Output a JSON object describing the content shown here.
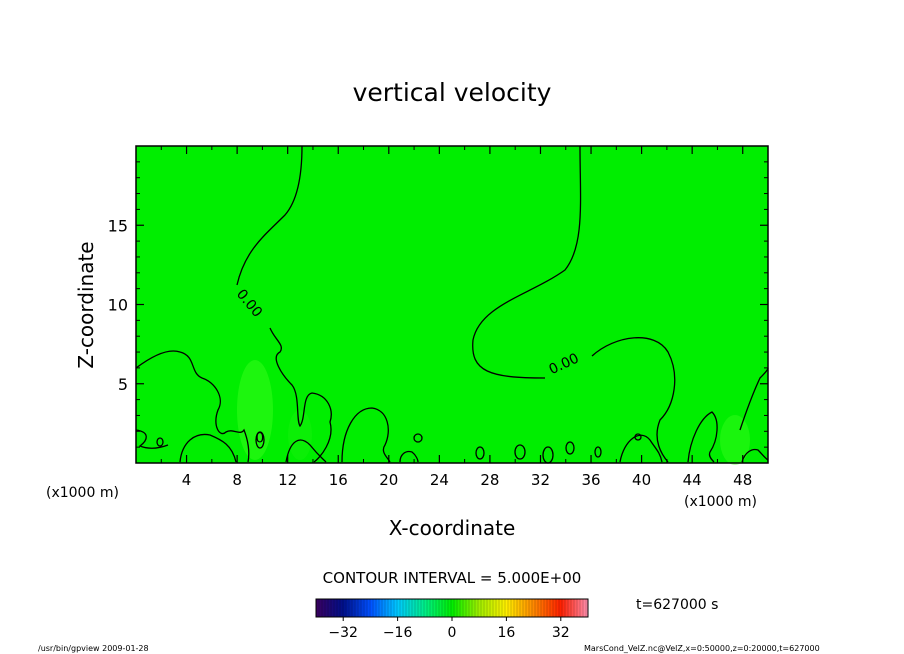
{
  "chart_data": {
    "type": "heatmap",
    "title": "vertical velocity",
    "xlabel": "X-coordinate",
    "ylabel": "Z-coordinate",
    "x_unit_left": "(x1000 m)",
    "x_unit_right": "(x1000 m)",
    "xlim": [
      0,
      50
    ],
    "ylim": [
      0,
      20
    ],
    "x_ticks": [
      4,
      8,
      12,
      16,
      20,
      24,
      28,
      32,
      36,
      40,
      44,
      48
    ],
    "y_ticks": [
      5,
      10,
      15
    ],
    "field_color": "#00ee00",
    "contour_color": "#000000",
    "contour_labels": [
      {
        "text": "0.00",
        "x": 8.7,
        "y": 9.9
      },
      {
        "text": "0.00",
        "x": 34.0,
        "y": 6.0
      },
      {
        "text": "0",
        "x": 9.8,
        "y": 1.3
      }
    ],
    "contour_interval_text": "CONTOUR INTERVAL = 5.000E+00",
    "time_label": "t=627000 s",
    "colorbar": {
      "min": -40,
      "max": 40,
      "ticks": [
        -32,
        -16,
        0,
        16,
        32
      ],
      "colors": [
        "#3a0060",
        "#00108a",
        "#0050ff",
        "#00c8ff",
        "#00ee88",
        "#00ee00",
        "#a0ee00",
        "#ffee00",
        "#ff8800",
        "#ff2000",
        "#ff90b0"
      ]
    }
  },
  "footer": {
    "left": "/usr/bin/gpview  2009-01-28",
    "right": "MarsCond_VelZ.nc@VelZ,x=0:50000,z=0:20000,t=627000"
  }
}
